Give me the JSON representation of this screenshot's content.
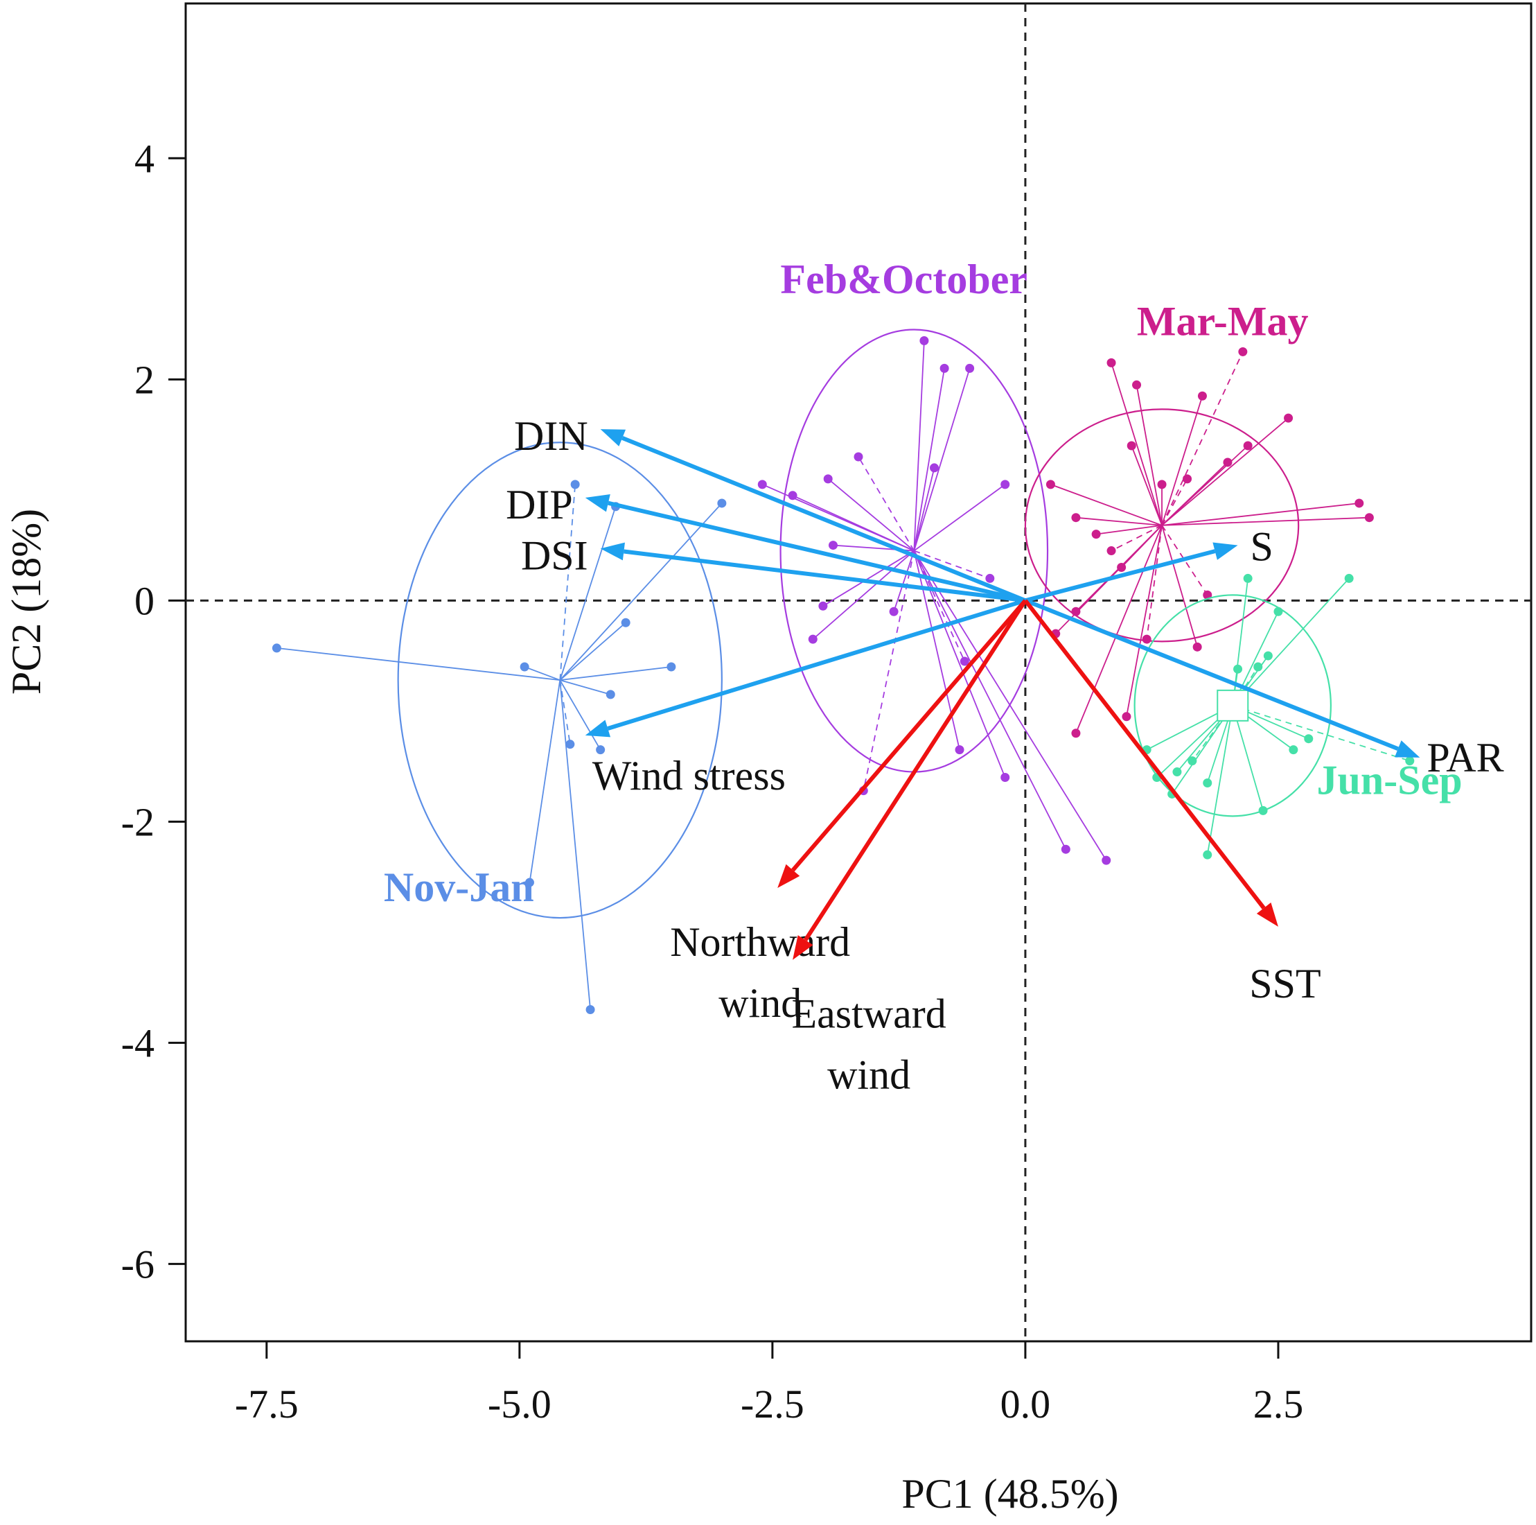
{
  "chart_data": {
    "type": "scatter",
    "subtype": "pca-biplot",
    "title": "",
    "xlabel": "PC1 (48.5%)",
    "ylabel": "PC2 (18%)",
    "xlim": [
      -8.3,
      5.0
    ],
    "ylim": [
      -6.7,
      5.4
    ],
    "xticks": [
      -7.5,
      -5.0,
      -2.5,
      0.0,
      2.5
    ],
    "xtick_labels": [
      "-7.5",
      "-5.0",
      "-2.5",
      "0.0",
      "2.5"
    ],
    "yticks": [
      -6,
      -4,
      -2,
      0,
      2,
      4
    ],
    "ytick_labels": [
      "-6",
      "-4",
      "-2",
      "0",
      "2",
      "4"
    ],
    "reference_lines": {
      "x": 0,
      "y": 0,
      "style": "dashed"
    },
    "groups": [
      {
        "name": "Nov-Jan",
        "color": "#5b8ee6",
        "centroid": [
          -4.6,
          -0.72
        ],
        "ellipse": {
          "rx": 1.6,
          "ry": 2.15
        },
        "points": [
          [
            -7.4,
            -0.43
          ],
          [
            -3.0,
            0.88
          ],
          [
            -4.05,
            0.85
          ],
          [
            -4.45,
            1.05
          ],
          [
            -4.1,
            -0.85
          ],
          [
            -3.95,
            -0.2
          ],
          [
            -4.3,
            -3.7
          ],
          [
            -4.9,
            -2.55
          ],
          [
            -4.5,
            -1.3
          ],
          [
            -3.5,
            -0.6
          ],
          [
            -4.95,
            -0.6
          ],
          [
            -4.2,
            -1.35
          ]
        ],
        "label_pos": [
          -5.6,
          -2.72
        ]
      },
      {
        "name": "Feb&October",
        "color": "#a53ce0",
        "centroid": [
          -1.1,
          0.45
        ],
        "ellipse": {
          "rx": 1.32,
          "ry": 2.0
        },
        "points": [
          [
            -1.0,
            2.35
          ],
          [
            -0.8,
            2.1
          ],
          [
            -0.55,
            2.1
          ],
          [
            -1.65,
            1.3
          ],
          [
            -1.95,
            1.1
          ],
          [
            -2.3,
            0.95
          ],
          [
            -2.6,
            1.05
          ],
          [
            -2.1,
            -0.35
          ],
          [
            -1.6,
            -1.72
          ],
          [
            -0.65,
            -1.35
          ],
          [
            -0.2,
            -1.6
          ],
          [
            0.4,
            -2.25
          ],
          [
            0.8,
            -2.35
          ],
          [
            -0.35,
            0.2
          ],
          [
            -0.2,
            1.05
          ],
          [
            -1.9,
            0.5
          ],
          [
            -2.0,
            -0.05
          ],
          [
            -0.9,
            1.2
          ],
          [
            -0.6,
            -0.55
          ],
          [
            -1.3,
            -0.1
          ]
        ],
        "label_pos": [
          -1.2,
          2.78
        ]
      },
      {
        "name": "Mar-May",
        "color": "#cc1e8c",
        "centroid": [
          1.35,
          0.68
        ],
        "ellipse": {
          "rx": 1.35,
          "ry": 1.05
        },
        "points": [
          [
            0.85,
            2.15
          ],
          [
            1.1,
            1.95
          ],
          [
            1.75,
            1.85
          ],
          [
            2.15,
            2.25
          ],
          [
            2.6,
            1.65
          ],
          [
            2.2,
            1.4
          ],
          [
            1.05,
            1.4
          ],
          [
            1.35,
            1.05
          ],
          [
            1.6,
            1.1
          ],
          [
            2.0,
            1.25
          ],
          [
            0.25,
            1.05
          ],
          [
            0.5,
            0.75
          ],
          [
            0.7,
            0.6
          ],
          [
            0.85,
            0.45
          ],
          [
            0.95,
            0.3
          ],
          [
            3.3,
            0.88
          ],
          [
            3.4,
            0.75
          ],
          [
            0.5,
            -0.1
          ],
          [
            1.2,
            -0.35
          ],
          [
            1.7,
            -0.42
          ],
          [
            0.5,
            -1.2
          ],
          [
            1.0,
            -1.05
          ],
          [
            0.3,
            -0.3
          ],
          [
            1.8,
            0.05
          ]
        ],
        "label_pos": [
          1.95,
          2.4
        ]
      },
      {
        "name": "Jun-Sep",
        "color": "#45e0a8",
        "centroid": [
          2.05,
          -0.95
        ],
        "ellipse": {
          "rx": 0.97,
          "ry": 1.0
        },
        "points": [
          [
            3.2,
            0.2
          ],
          [
            2.5,
            -0.1
          ],
          [
            2.4,
            -0.5
          ],
          [
            2.3,
            -0.6
          ],
          [
            2.1,
            -0.62
          ],
          [
            1.2,
            -1.35
          ],
          [
            1.3,
            -1.6
          ],
          [
            1.5,
            -1.55
          ],
          [
            1.65,
            -1.45
          ],
          [
            1.8,
            -1.65
          ],
          [
            2.35,
            -1.9
          ],
          [
            2.65,
            -1.35
          ],
          [
            2.8,
            -1.25
          ],
          [
            3.8,
            -1.45
          ],
          [
            1.8,
            -2.3
          ],
          [
            1.45,
            -1.75
          ],
          [
            2.2,
            0.2
          ]
        ],
        "label_pos": [
          3.6,
          -1.75
        ]
      }
    ],
    "loadings": [
      {
        "name": "DIN",
        "color": "#1ea1ef",
        "x": -4.2,
        "y": 1.55,
        "label_lines": [
          "DIN"
        ]
      },
      {
        "name": "DIP",
        "color": "#1ea1ef",
        "x": -4.35,
        "y": 0.93,
        "label_lines": [
          "DIP"
        ]
      },
      {
        "name": "DSI",
        "color": "#1ea1ef",
        "x": -4.2,
        "y": 0.47,
        "label_lines": [
          "DSI"
        ]
      },
      {
        "name": "S",
        "color": "#1ea1ef",
        "x": 2.1,
        "y": 0.5,
        "label_lines": [
          "S"
        ]
      },
      {
        "name": "PAR",
        "color": "#1ea1ef",
        "x": 3.9,
        "y": -1.42,
        "label_lines": [
          "PAR"
        ]
      },
      {
        "name": "Wind stress",
        "color": "#1ea1ef",
        "x": -4.35,
        "y": -1.22,
        "label_lines": [
          "Wind  stress"
        ]
      },
      {
        "name": "Northward wind",
        "color": "#ee1111",
        "x": -2.45,
        "y": -2.6,
        "label_lines": [
          "Northward",
          "wind"
        ]
      },
      {
        "name": "Eastward wind",
        "color": "#ee1111",
        "x": -2.3,
        "y": -3.25,
        "label_lines": [
          "Eastward",
          "wind"
        ]
      },
      {
        "name": "SST",
        "color": "#ee1111",
        "x": 2.5,
        "y": -2.95,
        "label_lines": [
          "SST"
        ]
      }
    ]
  }
}
